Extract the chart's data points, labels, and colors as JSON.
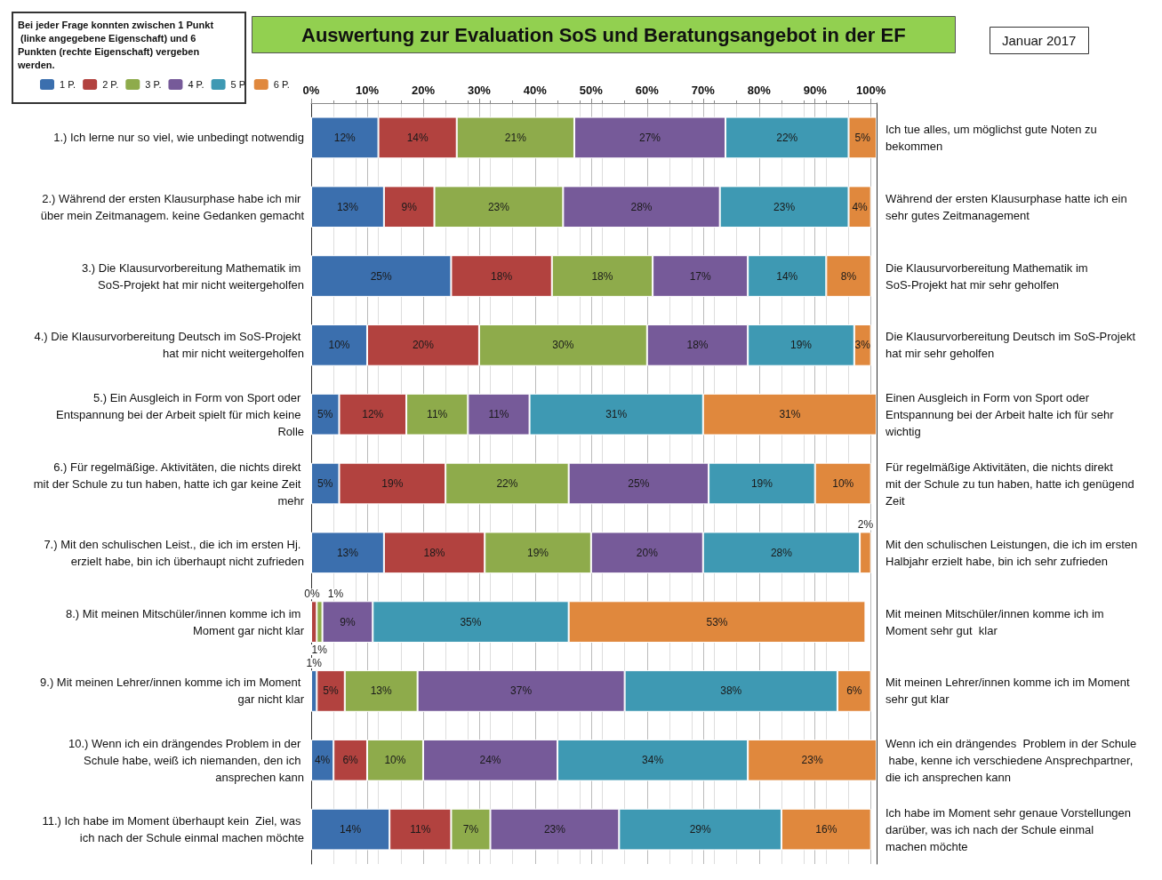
{
  "chart_data": {
    "type": "bar",
    "orientation": "horizontal",
    "stacked": true,
    "title": "Auswertung zur Evaluation SoS und Beratungsangebot in der EF",
    "subtitle": "Januar 2017",
    "legend_title": "Bei jeder Frage konnten zwischen 1 Punkt (linke angegebene Eigenschaft) und 6 Punkten (rechte Eigenschaft) vergeben werden.",
    "categories": [
      "1.) Ich lerne nur so viel, wie unbedingt notwendig",
      "2.) Während der ersten Klausurphase habe ich mir über mein Zeitmanagem. keine Gedanken gemacht",
      "3.) Die Klausurvorbereitung Mathematik im SoS-Projekt hat mir nicht weitergeholfen",
      "4.) Die Klausurvorbereitung Deutsch im SoS-Projekt hat mir nicht weitergeholfen",
      "5.) Ein Ausgleich in Form von Sport oder Entspannung bei der Arbeit spielt für mich keine Rolle",
      "6.) Für regelmäßige. Aktivitäten, die nichts direkt mit der Schule zu tun haben, hatte ich gar keine Zeit mehr",
      "7.) Mit den schulischen Leist., die ich im ersten Hj. erzielt habe, bin ich überhaupt nicht zufrieden",
      "8.) Mit meinen Mitschüler/innen komme ich im Moment gar nicht klar",
      "9.) Mit meinen Lehrer/innen komme ich im Moment gar nicht klar",
      "10.) Wenn ich ein drängendes Problem in der Schule habe, weiß ich niemanden, den ich ansprechen kann",
      "11.) Ich habe im Moment überhaupt kein  Ziel, was ich nach der Schule einmal machen möchte"
    ],
    "y2_categories": [
      "Ich tue alles, um möglichst gute Noten zu bekommen",
      "Während der ersten Klausurphase hatte ich ein sehr gutes Zeitmanagement",
      "Die Klausurvorbereitung Mathematik im SoS-Projekt hat mir sehr geholfen",
      "Die Klausurvorbereitung Deutsch im SoS-Projekt hat mir sehr geholfen",
      "Einen Ausgleich in Form von Sport oder Entspannung bei der Arbeit halte ich für sehr wichtig",
      "Für regelmäßige Aktivitäten, die nichts direkt mit der Schule zu tun haben, hatte ich genügend Zeit",
      "Mit den schulischen Leistungen, die ich im ersten Halbjahr erzielt habe, bin ich sehr zufrieden",
      "Mit meinen Mitschüler/innen komme ich im Moment sehr gut  klar",
      "Mit meinen Lehrer/innen komme ich im Moment sehr gut klar",
      "Wenn ich ein drängendes  Problem in der Schule habe, kenne ich verschiedene Ansprechpartner, die ich ansprechen kann",
      "Ich habe im Moment sehr genaue Vorstellungen darüber, was ich nach der Schule einmal machen möchte"
    ],
    "series": [
      {
        "name": "1 P.",
        "color": "#3b6fae",
        "values": [
          12,
          13,
          25,
          10,
          5,
          5,
          13,
          0,
          1,
          4,
          14
        ],
        "value_labels": [
          "12%",
          "13%",
          "25%",
          "10%",
          "5%",
          "5%",
          "13%",
          "0%",
          "1%",
          "4%",
          "14%"
        ]
      },
      {
        "name": "2 P.",
        "color": "#b2423f",
        "values": [
          14,
          9,
          18,
          20,
          12,
          19,
          18,
          1,
          5,
          6,
          11
        ],
        "value_labels": [
          "14%",
          "9%",
          "18%",
          "20%",
          "12%",
          "19%",
          "18%",
          "1%",
          "5%",
          "6%",
          "11%"
        ]
      },
      {
        "name": "3 P.",
        "color": "#8eab4b",
        "values": [
          21,
          23,
          18,
          30,
          11,
          22,
          19,
          1,
          13,
          10,
          7
        ],
        "value_labels": [
          "21%",
          "23%",
          "18%",
          "30%",
          "11%",
          "22%",
          "19%",
          "1%",
          "13%",
          "10%",
          "7%"
        ]
      },
      {
        "name": "4 P.",
        "color": "#765a99",
        "values": [
          27,
          28,
          17,
          18,
          11,
          25,
          20,
          9,
          37,
          24,
          23
        ],
        "value_labels": [
          "27%",
          "28%",
          "17%",
          "18%",
          "11%",
          "25%",
          "20%",
          "9%",
          "37%",
          "24%",
          "23%"
        ]
      },
      {
        "name": "5 P.",
        "color": "#3e99b3",
        "values": [
          22,
          23,
          14,
          19,
          31,
          19,
          28,
          35,
          38,
          34,
          29
        ],
        "value_labels": [
          "22%",
          "23%",
          "14%",
          "19%",
          "31%",
          "19%",
          "28%",
          "35%",
          "38%",
          "34%",
          "29%"
        ]
      },
      {
        "name": "6 P.",
        "color": "#e0883d",
        "values": [
          5,
          4,
          8,
          3,
          31,
          10,
          2,
          53,
          6,
          23,
          16
        ],
        "value_labels": [
          "5%",
          "4%",
          "8%",
          "3%",
          "31%",
          "10%",
          "2%",
          "53%",
          "6%",
          "23%",
          "16%"
        ]
      }
    ],
    "xlim": [
      0,
      101
    ],
    "xticks": [
      {
        "value": 0,
        "label": "0%"
      },
      {
        "value": 10,
        "label": "10%"
      },
      {
        "value": 20,
        "label": "20%"
      },
      {
        "value": 30,
        "label": "30%"
      },
      {
        "value": 40,
        "label": "40%"
      },
      {
        "value": 50,
        "label": "50%"
      },
      {
        "value": 60,
        "label": "60%"
      },
      {
        "value": 70,
        "label": "70%"
      },
      {
        "value": 80,
        "label": "80%"
      },
      {
        "value": 90,
        "label": "90%"
      },
      {
        "value": 100,
        "label": "100%"
      }
    ],
    "grid": "x",
    "legend": "top left"
  }
}
